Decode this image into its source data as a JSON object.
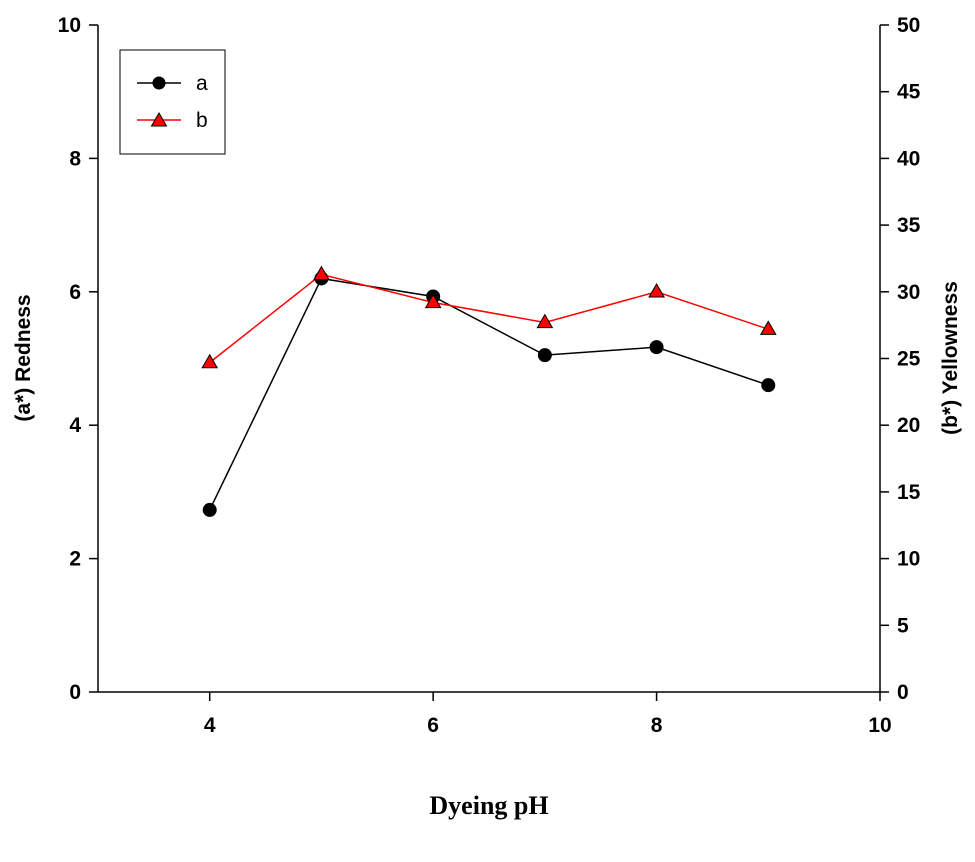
{
  "chart_data": {
    "type": "line",
    "xlabel": "Dyeing pH",
    "ylabel_left": "(a*) Redness",
    "ylabel_right": "(b*) Yellowness",
    "xlim": [
      3,
      10
    ],
    "ylim_left": [
      0,
      10
    ],
    "ylim_right": [
      0,
      50
    ],
    "x_ticks": [
      4,
      6,
      8,
      10
    ],
    "y_ticks_left": [
      0,
      2,
      4,
      6,
      8,
      10
    ],
    "y_ticks_right": [
      0,
      5,
      10,
      15,
      20,
      25,
      30,
      35,
      40,
      45,
      50
    ],
    "grid": false,
    "legend_position": "top-left",
    "series": [
      {
        "name": "a",
        "axis": "left",
        "marker": "circle",
        "color": "#000000",
        "marker_fill": "#000000",
        "x": [
          4,
          5,
          6,
          7,
          8,
          9
        ],
        "values": [
          2.73,
          6.2,
          5.93,
          5.05,
          5.17,
          4.6
        ]
      },
      {
        "name": "b",
        "axis": "right",
        "marker": "triangle",
        "color": "#ff0000",
        "marker_fill": "#ff0000",
        "x": [
          4,
          5,
          6,
          7,
          8,
          9
        ],
        "values": [
          24.7,
          31.3,
          29.2,
          27.7,
          30.0,
          27.2
        ]
      }
    ]
  }
}
